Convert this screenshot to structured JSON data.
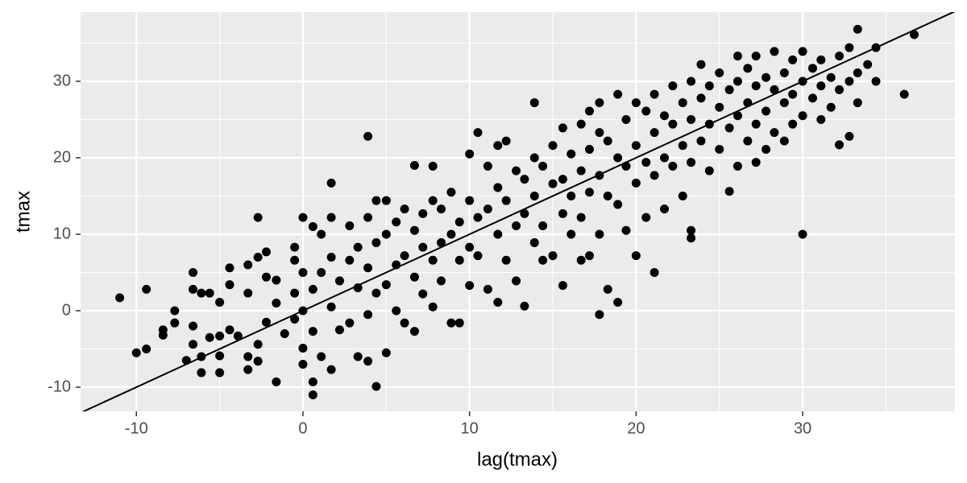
{
  "chart_data": {
    "type": "scatter",
    "x_label": "lag(tmax)",
    "y_label": "tmax",
    "xlim": [
      -13.35,
      39.14
    ],
    "ylim": [
      -13.16,
      39.05
    ],
    "xticks": [
      -10,
      0,
      10,
      20,
      30
    ],
    "yticks": [
      -10,
      0,
      10,
      20,
      30
    ],
    "xminor": [
      -5,
      5,
      15,
      25,
      35
    ],
    "yminor": [
      -5,
      5,
      15,
      25,
      35
    ],
    "grid": true,
    "color": "#000000",
    "abline": {
      "slope": 1,
      "intercept": 0,
      "color": "#000000"
    },
    "x": [
      -11,
      -10,
      -9.4,
      -9.4,
      -8.4,
      -8.4,
      -7.7,
      -7.7,
      -7,
      -6.6,
      -6.6,
      -6.6,
      -6.6,
      -6.1,
      -6.1,
      -6.1,
      -5.6,
      -5.6,
      -5,
      -5,
      -5,
      -5,
      -4.4,
      -4.4,
      -4.4,
      -3.9,
      -3.3,
      -3.3,
      -3.3,
      -3.3,
      -2.7,
      -2.7,
      -2.7,
      -2.7,
      -2.2,
      -2.2,
      -2.2,
      -1.6,
      -1.6,
      -1.6,
      -1.1,
      -0.5,
      -0.5,
      -0.5,
      -0.5,
      0,
      0,
      0,
      0,
      0,
      0.6,
      0.6,
      0.6,
      0.6,
      0.6,
      1.1,
      1.1,
      1.1,
      1.7,
      1.7,
      1.7,
      1.7,
      1.7,
      2.2,
      2.2,
      2.8,
      2.8,
      2.8,
      3.3,
      3.3,
      3.3,
      3.9,
      3.9,
      3.9,
      3.9,
      3.9,
      4.4,
      4.4,
      4.4,
      4.4,
      5,
      5,
      5,
      5,
      5.6,
      5.6,
      5.6,
      6.1,
      6.1,
      6.1,
      6.7,
      6.7,
      6.7,
      6.7,
      7.2,
      7.2,
      7.2,
      7.8,
      7.8,
      7.8,
      7.8,
      8.3,
      8.3,
      8.3,
      8.9,
      8.9,
      8.9,
      9.4,
      9.4,
      9.4,
      10,
      10,
      10,
      10,
      10.5,
      10.5,
      10.5,
      11.1,
      11.1,
      11.1,
      11.7,
      11.7,
      11.7,
      11.7,
      12.2,
      12.2,
      12.2,
      12.8,
      12.8,
      12.8,
      13.3,
      13.3,
      13.3,
      13.9,
      13.9,
      13.9,
      13.9,
      14.4,
      14.4,
      14.4,
      15,
      15,
      15,
      15.6,
      15.6,
      15.6,
      15.6,
      16.1,
      16.1,
      16.1,
      16.7,
      16.7,
      16.7,
      16.7,
      17.2,
      17.2,
      17.2,
      17.2,
      17.8,
      17.8,
      17.8,
      17.8,
      17.8,
      18.3,
      18.3,
      18.3,
      18.9,
      18.9,
      18.9,
      18.9,
      19.4,
      19.4,
      19.4,
      20,
      20,
      20,
      20,
      20.6,
      20.6,
      20.6,
      21.1,
      21.1,
      21.1,
      21.1,
      21.7,
      21.7,
      21.7,
      22.2,
      22.2,
      22.2,
      22.8,
      22.8,
      22.8,
      23.3,
      23.3,
      23.3,
      23.3,
      23.3,
      23.9,
      23.9,
      23.9,
      24.4,
      24.4,
      24.4,
      25,
      25,
      25,
      25.6,
      25.6,
      25.6,
      26.1,
      26.1,
      26.1,
      26.1,
      26.7,
      26.7,
      26.7,
      27.2,
      27.2,
      27.2,
      27.2,
      27.8,
      27.8,
      27.8,
      28.3,
      28.3,
      28.3,
      28.9,
      28.9,
      28.9,
      29.4,
      29.4,
      29.4,
      30,
      30,
      30,
      30,
      30.6,
      30.6,
      31.1,
      31.1,
      31.1,
      31.7,
      31.7,
      32.2,
      32.2,
      32.2,
      32.8,
      32.8,
      32.8,
      33.3,
      33.3,
      33.3,
      33.9,
      34.4,
      34.4,
      36.1,
      36.7
    ],
    "values": [
      1.7,
      -5.5,
      2.8,
      -5,
      -2.5,
      -3.2,
      0,
      -1.6,
      -6.5,
      5,
      2.8,
      -2,
      -4.4,
      -8.1,
      2.3,
      -6,
      2.3,
      -3.5,
      -8.1,
      -5.9,
      -3.3,
      1.1,
      5.6,
      3.4,
      -2.5,
      -3.3,
      6,
      2.3,
      -6,
      -7.7,
      12.2,
      7,
      -4.4,
      -6.6,
      7.7,
      4.4,
      -1.5,
      -9.3,
      4,
      1,
      -3,
      8.3,
      6.6,
      2.3,
      -1.1,
      12.2,
      5,
      0,
      -4.9,
      -7,
      -11,
      -9.3,
      11,
      2.8,
      -2.7,
      10,
      5,
      -6,
      16.7,
      12.2,
      7,
      -7.7,
      0.5,
      3.9,
      -2.5,
      11.1,
      6.6,
      -1.6,
      8.3,
      3,
      -6,
      22.8,
      12.2,
      5.6,
      -0.5,
      -6.6,
      14.4,
      8.9,
      2.3,
      -9.9,
      14.4,
      10,
      3.4,
      -5.5,
      11.6,
      6,
      0,
      13.3,
      7.2,
      -1.6,
      19,
      10.5,
      4.4,
      -2.7,
      12.7,
      8.3,
      2.2,
      18.9,
      14.4,
      6.6,
      0.5,
      13.3,
      8.9,
      3.9,
      15.5,
      10,
      -1.6,
      11.6,
      6.6,
      -1.6,
      20.5,
      14.4,
      8.3,
      3.3,
      23.3,
      12.2,
      7.2,
      18.9,
      13.3,
      2.8,
      21.6,
      16.1,
      10,
      1.1,
      22.2,
      14.4,
      6.6,
      18.3,
      11.1,
      3.9,
      17.2,
      12.7,
      0.6,
      27.2,
      20,
      15,
      8.9,
      18.9,
      11.1,
      6.6,
      21.6,
      16.6,
      7.2,
      23.9,
      17.2,
      12.7,
      3.3,
      20.5,
      15,
      10,
      24.4,
      18.3,
      12.2,
      6.6,
      26.1,
      21.1,
      15.5,
      7.2,
      27.2,
      23.3,
      17.7,
      10,
      -0.5,
      22.2,
      15,
      2.8,
      28.3,
      20,
      13.9,
      1.1,
      25,
      18.9,
      10.5,
      27.2,
      21.6,
      16.7,
      7.2,
      26.1,
      19.4,
      12.2,
      28.3,
      23.3,
      17.7,
      5,
      25.5,
      20,
      13.3,
      29.4,
      24.4,
      18.9,
      27.2,
      21.6,
      15,
      30,
      25,
      19.4,
      9.5,
      10.5,
      32.2,
      27.8,
      22.2,
      29.4,
      24.4,
      18.3,
      31.1,
      26.6,
      21.1,
      28.9,
      23.9,
      15.6,
      33.3,
      30,
      25.5,
      18.9,
      31.7,
      27.2,
      22.2,
      33.3,
      29.4,
      24.4,
      19.4,
      30.5,
      26.1,
      21.1,
      33.9,
      28.9,
      23.3,
      31.1,
      27.2,
      22.2,
      32.8,
      28.3,
      24.4,
      33.9,
      30,
      25.5,
      10,
      31.7,
      27.8,
      32.8,
      29.4,
      25,
      30.5,
      26.6,
      33.3,
      28.9,
      21.7,
      34.4,
      30,
      22.8,
      36.8,
      31.1,
      27.2,
      32.2,
      34.4,
      30,
      28.3,
      36.1
    ]
  }
}
